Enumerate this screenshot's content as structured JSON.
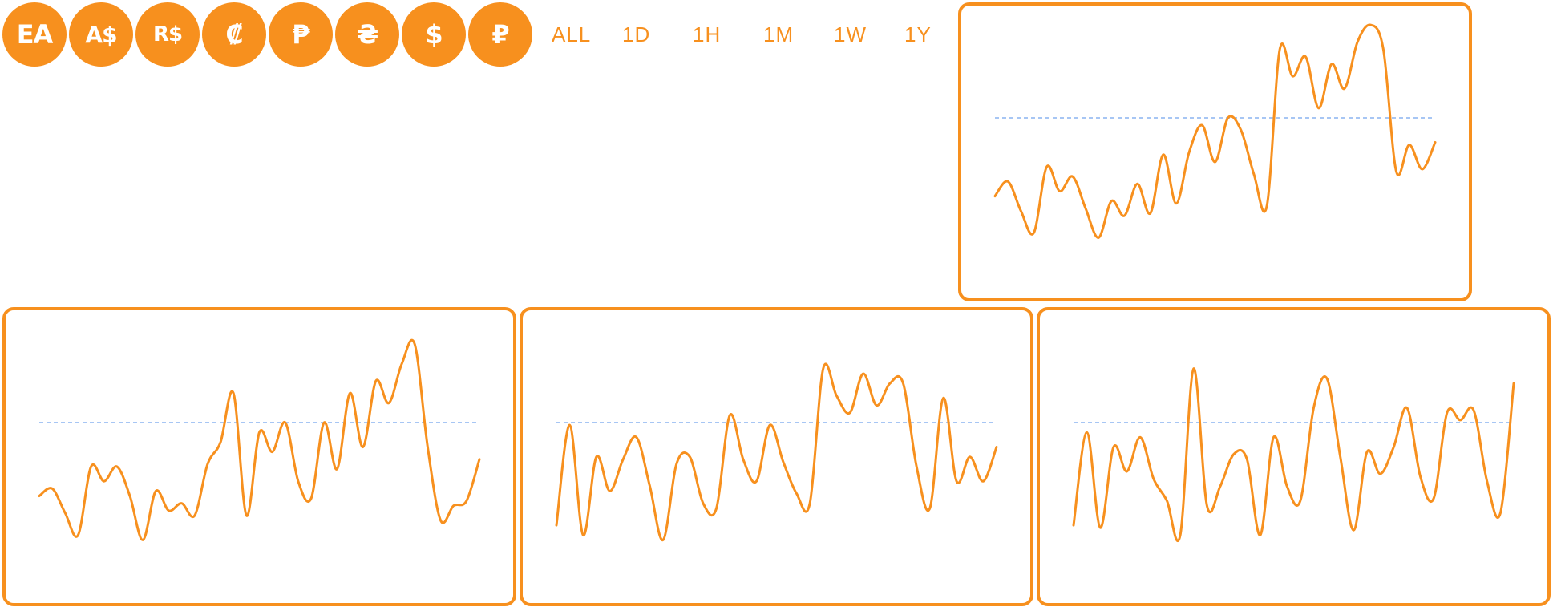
{
  "currencies": [
    {
      "label": "EA",
      "icon": "ea-currency-icon"
    },
    {
      "label": "A$",
      "icon": "australian-dollar-icon"
    },
    {
      "label": "R$",
      "icon": "brazilian-real-icon"
    },
    {
      "label": "₡",
      "icon": "colon-icon"
    },
    {
      "label": "₱",
      "icon": "peso-icon"
    },
    {
      "label": "₴",
      "icon": "hryvnia-icon"
    },
    {
      "label": "$",
      "icon": "dollar-icon"
    },
    {
      "label": "₽",
      "icon": "ruble-icon"
    }
  ],
  "ranges": [
    {
      "label": "ALL"
    },
    {
      "label": "1D"
    },
    {
      "label": "1H"
    },
    {
      "label": "1M"
    },
    {
      "label": "1W"
    },
    {
      "label": "1Y"
    }
  ],
  "colors": {
    "accent": "#f7901e",
    "baseline": "#8ab4f0",
    "background": "#ffffff"
  },
  "chart_data": [
    {
      "type": "line",
      "title": "",
      "reference_line": 0.6,
      "grid": false,
      "ylim": [
        0,
        1
      ],
      "series": [
        {
          "values": [
            0.28,
            0.34,
            0.22,
            0.13,
            0.4,
            0.3,
            0.36,
            0.23,
            0.11,
            0.26,
            0.2,
            0.33,
            0.21,
            0.45,
            0.25,
            0.46,
            0.57,
            0.42,
            0.6,
            0.55,
            0.37,
            0.24,
            0.88,
            0.77,
            0.85,
            0.64,
            0.82,
            0.72,
            0.91,
            0.98,
            0.88,
            0.38,
            0.49,
            0.39,
            0.5
          ]
        }
      ]
    },
    {
      "type": "line",
      "title": "",
      "reference_line": 0.6,
      "grid": false,
      "ylim": [
        0,
        1
      ],
      "series": [
        {
          "values": [
            0.3,
            0.33,
            0.23,
            0.14,
            0.42,
            0.36,
            0.42,
            0.3,
            0.12,
            0.32,
            0.24,
            0.27,
            0.22,
            0.43,
            0.52,
            0.72,
            0.22,
            0.56,
            0.48,
            0.6,
            0.36,
            0.29,
            0.6,
            0.41,
            0.72,
            0.5,
            0.77,
            0.68,
            0.84,
            0.92,
            0.5,
            0.2,
            0.26,
            0.28,
            0.45
          ]
        }
      ]
    },
    {
      "type": "line",
      "title": "",
      "reference_line": 0.6,
      "grid": false,
      "ylim": [
        0,
        1
      ],
      "series": [
        {
          "values": [
            0.18,
            0.59,
            0.14,
            0.46,
            0.32,
            0.45,
            0.54,
            0.34,
            0.12,
            0.43,
            0.46,
            0.27,
            0.25,
            0.63,
            0.45,
            0.36,
            0.59,
            0.44,
            0.31,
            0.27,
            0.82,
            0.71,
            0.64,
            0.8,
            0.67,
            0.76,
            0.76,
            0.42,
            0.25,
            0.7,
            0.36,
            0.46,
            0.36,
            0.5
          ]
        }
      ]
    },
    {
      "type": "line",
      "title": "",
      "reference_line": 0.6,
      "grid": false,
      "ylim": [
        0,
        1
      ],
      "series": [
        {
          "values": [
            0.18,
            0.56,
            0.17,
            0.5,
            0.4,
            0.54,
            0.37,
            0.28,
            0.14,
            0.82,
            0.26,
            0.34,
            0.47,
            0.45,
            0.14,
            0.54,
            0.34,
            0.28,
            0.66,
            0.78,
            0.46,
            0.16,
            0.48,
            0.39,
            0.5,
            0.66,
            0.38,
            0.29,
            0.64,
            0.61,
            0.65,
            0.36,
            0.23,
            0.76
          ]
        }
      ]
    }
  ]
}
